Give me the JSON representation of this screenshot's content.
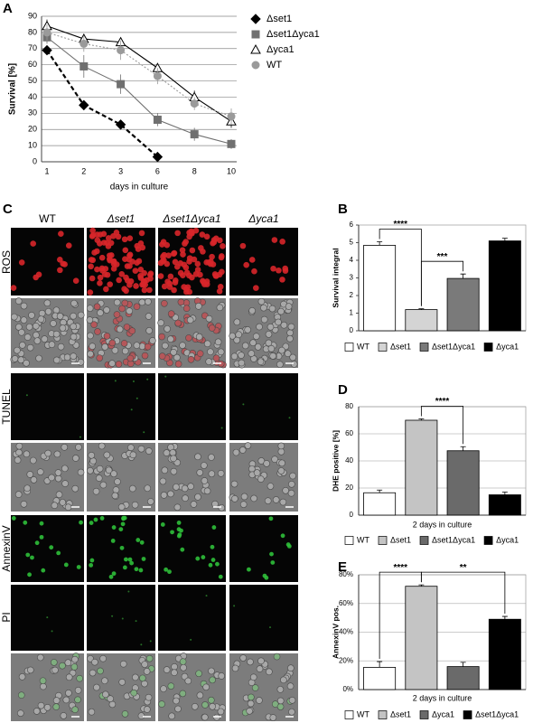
{
  "image_grid": {
    "panel": "C",
    "columns": [
      "WT",
      "Δset1",
      "Δset1Δyca1",
      "Δyca1"
    ],
    "row_labels": [
      "ROS",
      "TUNEL",
      "AnnexinV",
      "PI"
    ]
  },
  "chart_data": [
    {
      "type": "line",
      "panel": "A",
      "ylabel": "Survival [%]",
      "xlabel": "days in culture",
      "categories": [
        "1",
        "2",
        "3",
        "6",
        "8",
        "10"
      ],
      "ylim": [
        0,
        90
      ],
      "yticks": [
        0,
        10,
        20,
        30,
        40,
        50,
        60,
        70,
        80,
        90
      ],
      "grid": true,
      "series": [
        {
          "name": "Δset1",
          "color": "#000000",
          "marker": "diamond",
          "line_style": "dashed",
          "values": [
            69,
            35,
            23,
            3,
            null,
            null
          ],
          "errors": [
            3,
            3,
            2,
            1,
            null,
            null
          ]
        },
        {
          "name": "Δset1Δyca1",
          "color": "#707070",
          "marker": "square",
          "line_style": "solid",
          "values": [
            77,
            59,
            48,
            26,
            17,
            11
          ],
          "errors": [
            4,
            7,
            6,
            4,
            4,
            3
          ]
        },
        {
          "name": "Δyca1",
          "color": "#000000",
          "marker": "triangle",
          "line_style": "solid",
          "values": [
            84,
            76,
            74,
            58,
            40,
            25
          ],
          "errors": [
            4,
            3,
            2,
            3,
            4,
            4
          ]
        },
        {
          "name": "WT",
          "color": "#9a9a9a",
          "marker": "circle",
          "line_style": "dotted",
          "values": [
            80,
            73,
            69,
            53,
            36,
            28
          ],
          "errors": [
            5,
            5,
            6,
            5,
            4,
            5
          ]
        }
      ]
    },
    {
      "type": "bar",
      "panel": "B",
      "ylabel": "Survival integral",
      "categories": [
        "WT",
        "Δset1",
        "Δset1Δyca1",
        "Δyca1"
      ],
      "colors": [
        "#ffffff",
        "#d4d4d4",
        "#7a7a7a",
        "#000000"
      ],
      "values": [
        4.85,
        1.2,
        2.97,
        5.1
      ],
      "errors": [
        0.2,
        0.05,
        0.25,
        0.15
      ],
      "ylim": [
        0,
        6
      ],
      "yticks": [
        0,
        1,
        2,
        3,
        4,
        5,
        6
      ],
      "grid": false,
      "significance": [
        {
          "text": "****",
          "between": [
            "WT",
            "Δset1"
          ]
        },
        {
          "text": "***",
          "between": [
            "Δset1",
            "Δset1Δyca1"
          ]
        }
      ]
    },
    {
      "type": "bar",
      "panel": "D",
      "ylabel": "DHE positive [%]",
      "xlabel": "2 days in culture",
      "categories": [
        "WT",
        "Δset1",
        "Δset1Δyca1",
        "Δyca1"
      ],
      "colors": [
        "#ffffff",
        "#c4c4c4",
        "#6a6a6a",
        "#000000"
      ],
      "values": [
        16.5,
        70,
        47.5,
        15
      ],
      "errors": [
        2,
        1,
        3,
        2
      ],
      "ylim": [
        0,
        80
      ],
      "yticks": [
        0,
        20,
        40,
        60,
        80
      ],
      "grid": true,
      "significance": [
        {
          "text": "****",
          "between": [
            "Δset1",
            "Δset1Δyca1"
          ]
        }
      ]
    },
    {
      "type": "bar",
      "panel": "E",
      "ylabel": "AnnexinV pos.",
      "xlabel": "2 days in culture",
      "categories": [
        "WT",
        "Δset1",
        "Δyca1",
        "Δset1Δyca1"
      ],
      "colors": [
        "#ffffff",
        "#c4c4c4",
        "#6a6a6a",
        "#000000"
      ],
      "values": [
        15.5,
        72,
        16,
        49
      ],
      "errors": [
        4,
        1,
        3,
        2
      ],
      "ylim": [
        0,
        80
      ],
      "yticks": [
        {
          "value": 0,
          "label": "0%"
        },
        {
          "value": 20,
          "label": "20%"
        },
        {
          "value": 40,
          "label": "40%"
        },
        {
          "value": 60,
          "label": "60%"
        },
        {
          "value": 80,
          "label": "80%"
        }
      ],
      "grid": true,
      "significance": [
        {
          "text": "****",
          "between": [
            "WT",
            "Δset1"
          ]
        },
        {
          "text": "**",
          "between": [
            "Δset1",
            "Δset1Δyca1"
          ]
        }
      ]
    }
  ]
}
